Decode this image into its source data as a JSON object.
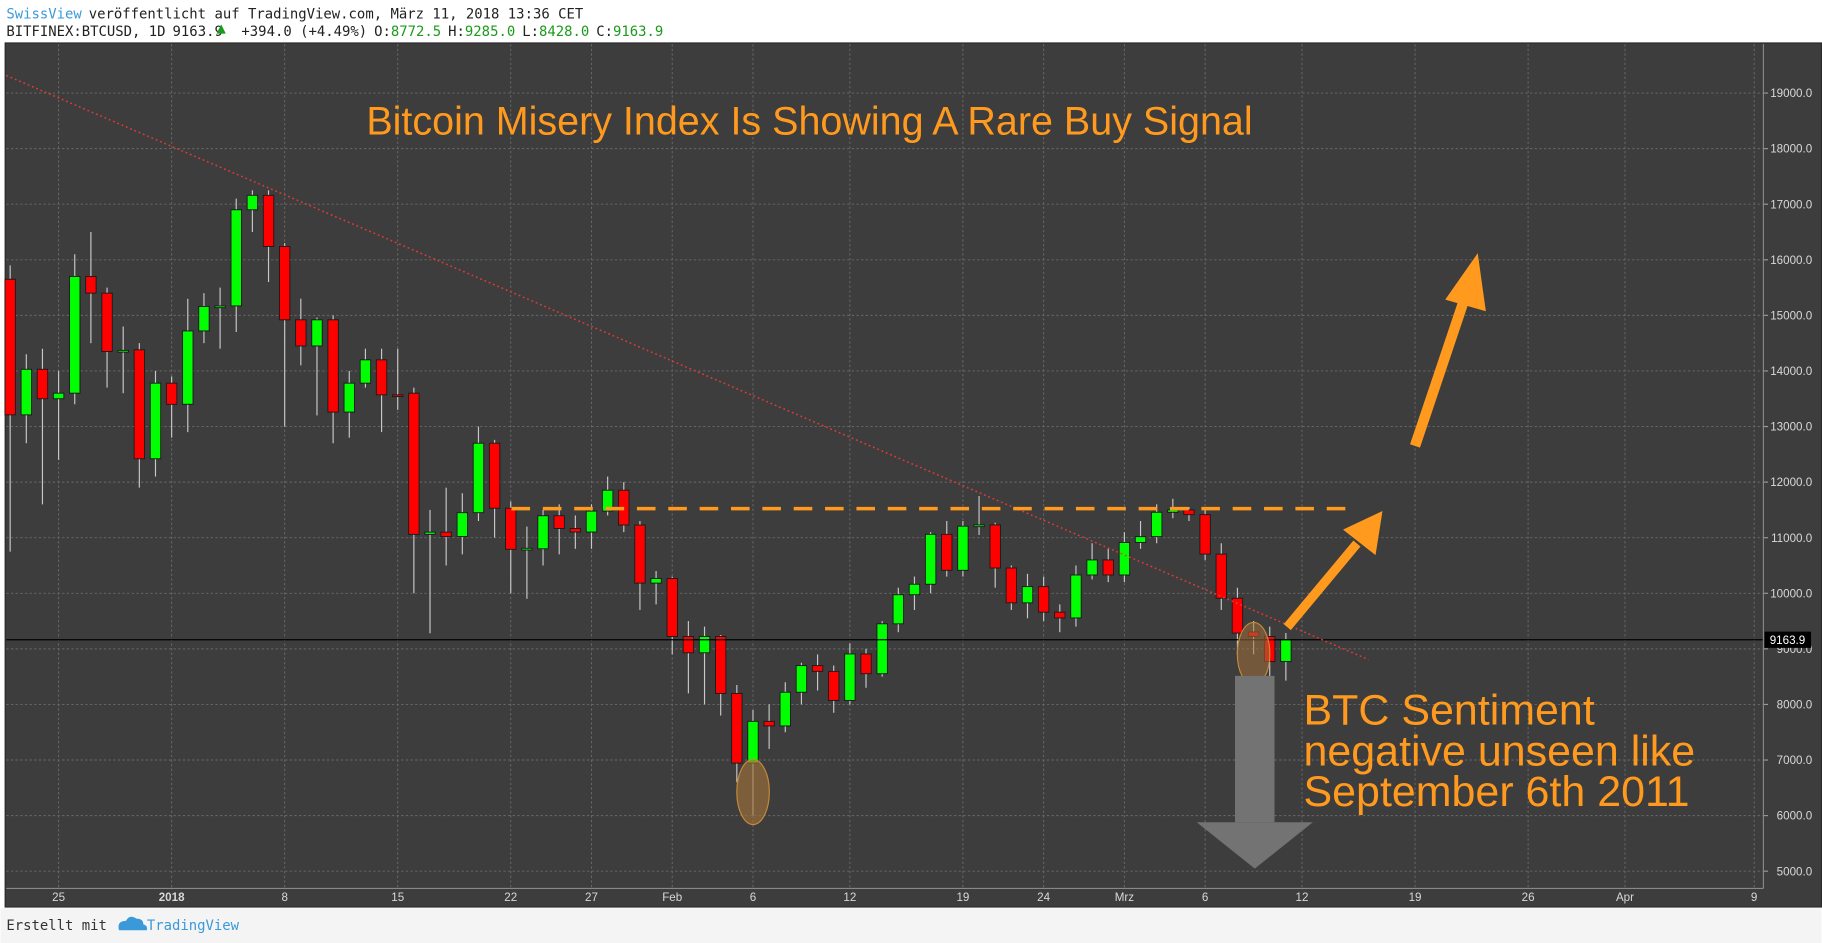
{
  "header": {
    "author": "SwissView",
    "published": "veröffentlicht auf TradingView.com, März 11, 2018 13:36 CET",
    "symbol": "BITFINEX:BTCUSD, 1D",
    "last": "9163.9",
    "change": "+394.0 (+4.49%)",
    "open_label": "O:",
    "open": "8772.5",
    "high_label": "H:",
    "high": "9285.0",
    "low_label": "L:",
    "low": "8428.0",
    "close_label": "C:",
    "close": "9163.9"
  },
  "footer": {
    "made_with": "Erstellt mit",
    "brand": "TradingView"
  },
  "chart_data": {
    "type": "candlestick",
    "annotations": [
      "Bitcoin Misery Index Is Showing A Rare Buy Signal",
      "BTC Sentiment",
      "negative unseen like",
      "September 6th 2011"
    ],
    "categories": [
      null,
      null,
      null,
      "25",
      null,
      null,
      null,
      null,
      null,
      null,
      "2018",
      null,
      null,
      null,
      null,
      null,
      null,
      "8",
      null,
      null,
      null,
      null,
      null,
      null,
      "15",
      null,
      null,
      null,
      null,
      null,
      null,
      "22",
      null,
      null,
      null,
      null,
      "27",
      null,
      null,
      null,
      null,
      "Feb",
      null,
      null,
      null,
      null,
      "6",
      null,
      null,
      null,
      null,
      null,
      "12",
      null,
      null,
      null,
      null,
      null,
      null,
      "19",
      null,
      null,
      null,
      null,
      "24",
      null,
      null,
      null,
      null,
      "Mrz",
      null,
      null,
      null,
      null,
      "6",
      null,
      null,
      null,
      null,
      null,
      "12",
      null,
      null,
      null,
      null,
      null,
      null,
      "19",
      null,
      null,
      null,
      null,
      null,
      null,
      "26",
      null,
      null,
      null,
      null,
      null,
      "Apr",
      null,
      null,
      null,
      null,
      null,
      null,
      null,
      "9"
    ],
    "open": [
      15650,
      13210,
      14030,
      13500,
      13600,
      15700,
      15400,
      14350,
      14380,
      12420,
      13780,
      13400,
      14720,
      15160,
      15170,
      16900,
      17160,
      16240,
      14920,
      14450,
      14920,
      13260,
      13780,
      14200,
      13570,
      13600,
      11060,
      11100,
      11020,
      11450,
      12700,
      11530,
      10790,
      10800,
      11395,
      11165,
      11102,
      11478,
      11854,
      11228,
      10183,
      10266,
      9222,
      8929,
      9222,
      8198,
      6944,
      7696,
      7613,
      8219,
      8699,
      8595,
      8072,
      8908,
      8553,
      9451,
      9974,
      10162,
      11060,
      10413,
      11207,
      11230,
      10455,
      9828,
      10120,
      9660,
      9556,
      10329,
      10600,
      10329,
      10914,
      11019,
      11457,
      11500,
      11415,
      10705,
      9911,
      9305,
      9222,
      8772.5,
      null,
      null,
      null,
      null,
      null,
      null,
      null,
      null,
      null,
      null,
      null,
      null,
      null,
      null,
      null,
      null,
      null,
      null,
      null,
      null,
      null,
      null,
      null,
      null,
      null,
      null,
      null,
      null,
      null
    ],
    "high": [
      15900,
      14300,
      14400,
      14000,
      16100,
      16500,
      15500,
      14800,
      14500,
      14000,
      13900,
      15300,
      15400,
      15500,
      17100,
      17250,
      17250,
      16300,
      15300,
      14960,
      15000,
      14000,
      14400,
      14400,
      14400,
      13700,
      11500,
      11900,
      11800,
      13000,
      12760,
      11650,
      11200,
      11500,
      11600,
      11400,
      11600,
      12100,
      12000,
      11300,
      10400,
      10300,
      9500,
      9400,
      9250,
      8350,
      7900,
      8000,
      8400,
      8750,
      8900,
      8700,
      9100,
      9000,
      9500,
      10100,
      10300,
      11100,
      11300,
      11300,
      11750,
      11270,
      10500,
      10350,
      10300,
      9800,
      10500,
      10900,
      10800,
      11100,
      11300,
      11600,
      11700,
      11550,
      11500,
      10900,
      10100,
      9500,
      9400,
      9285,
      null,
      null,
      null,
      null,
      null,
      null,
      null,
      null,
      null,
      null,
      null,
      null,
      null,
      null,
      null,
      null,
      null,
      null,
      null,
      null,
      null,
      null,
      null,
      null,
      null,
      null,
      null,
      null,
      null
    ],
    "low": [
      10750,
      12700,
      11600,
      12400,
      13400,
      14500,
      13700,
      13600,
      11900,
      12100,
      12800,
      12900,
      14500,
      14400,
      14700,
      16500,
      15600,
      13000,
      14100,
      13200,
      12700,
      12800,
      13700,
      12900,
      13300,
      10000,
      9280,
      10500,
      10700,
      11300,
      11000,
      10000,
      9900,
      10500,
      10700,
      10800,
      10800,
      11400,
      11100,
      9700,
      9800,
      8900,
      8200,
      8000,
      7800,
      6600,
      6000,
      7200,
      7500,
      8000,
      8250,
      7850,
      8000,
      8300,
      8500,
      9300,
      9700,
      10000,
      10300,
      10300,
      11050,
      10100,
      9700,
      9550,
      9500,
      9300,
      9400,
      10250,
      10200,
      10200,
      10800,
      10900,
      11350,
      11300,
      10600,
      9700,
      8900,
      8900,
      8500,
      8428,
      null,
      null,
      null,
      null,
      null,
      null,
      null,
      null,
      null,
      null,
      null,
      null,
      null,
      null,
      null,
      null,
      null,
      null,
      null,
      null,
      null,
      null,
      null,
      null,
      null,
      null,
      null,
      null,
      null
    ],
    "close": [
      13210,
      14030,
      13500,
      13600,
      15700,
      15400,
      14350,
      14370,
      12420,
      13780,
      13400,
      14720,
      15160,
      15170,
      16900,
      17160,
      16240,
      14920,
      14450,
      14920,
      13260,
      13780,
      14200,
      13570,
      13560,
      11060,
      11100,
      11020,
      11450,
      12700,
      11530,
      10790,
      10810,
      11395,
      11165,
      11102,
      11478,
      11854,
      11228,
      10183,
      10266,
      9222,
      8929,
      9222,
      8198,
      6944,
      7696,
      7613,
      8219,
      8699,
      8595,
      8072,
      8908,
      8553,
      9451,
      9974,
      10162,
      11060,
      10413,
      11207,
      11230,
      10455,
      9828,
      10120,
      9660,
      9556,
      10329,
      10600,
      10329,
      10914,
      11019,
      11457,
      11500,
      11415,
      10705,
      9911,
      9284,
      9222,
      8772.5,
      9163.9,
      null,
      null,
      null,
      null,
      null,
      null,
      null,
      null,
      null,
      null,
      null,
      null,
      null,
      null,
      null,
      null,
      null,
      null,
      null,
      null,
      null,
      null,
      null,
      null,
      null,
      null,
      null,
      null,
      null
    ],
    "up_color": "#00ff00",
    "down_color": "#ff0000",
    "ylim": [
      4690,
      19880
    ],
    "yticks": [
      {
        "value": 5000,
        "label": "5000.0"
      },
      {
        "value": 6000,
        "label": "6000.0"
      },
      {
        "value": 7000,
        "label": "7000.0"
      },
      {
        "value": 8000,
        "label": "8000.0"
      },
      {
        "value": 9000,
        "label": "9000.0"
      },
      {
        "value": 10000,
        "label": "10000.0"
      },
      {
        "value": 11000,
        "label": "11000.0"
      },
      {
        "value": 12000,
        "label": "12000.0"
      },
      {
        "value": 13000,
        "label": "13000.0"
      },
      {
        "value": 14000,
        "label": "14000.0"
      },
      {
        "value": 15000,
        "label": "15000.0"
      },
      {
        "value": 16000,
        "label": "16000.0"
      },
      {
        "value": 17000,
        "label": "17000.0"
      },
      {
        "value": 18000,
        "label": "18000.0"
      },
      {
        "value": 19000,
        "label": "19000.0"
      }
    ],
    "last_price_label": "9163.9",
    "grid": true
  }
}
